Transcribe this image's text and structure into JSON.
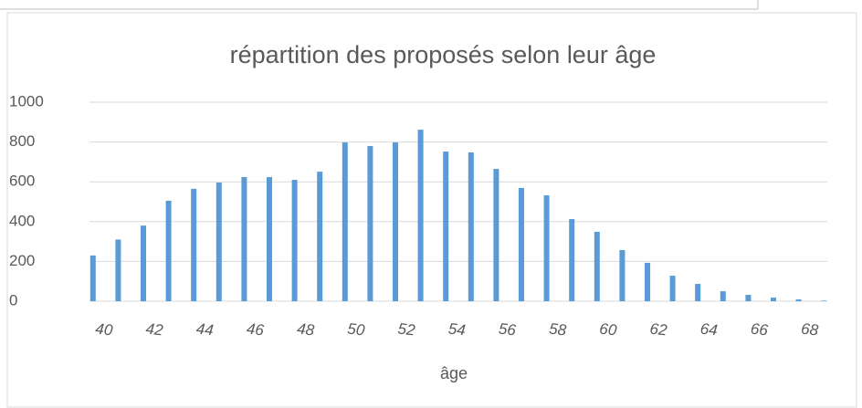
{
  "chart_data": {
    "type": "bar",
    "title": "répartition des proposés selon leur âge",
    "x_label": "âge",
    "categories": [
      "40",
      null,
      "42",
      null,
      "44",
      null,
      "46",
      null,
      "48",
      null,
      "50",
      null,
      "52",
      null,
      "54",
      null,
      "56",
      null,
      "58",
      null,
      "60",
      null,
      "62",
      null,
      "64",
      null,
      "66",
      null,
      "68",
      null
    ],
    "values": [
      230,
      310,
      380,
      505,
      565,
      596,
      624,
      624,
      610,
      651,
      798,
      780,
      798,
      862,
      752,
      748,
      665,
      569,
      532,
      413,
      349,
      257,
      193,
      128,
      87,
      50,
      32,
      18,
      9,
      3
    ],
    "color": "#5b9bd5",
    "ylim": [
      0,
      1000
    ],
    "yticks": [
      0,
      200,
      400,
      600,
      800,
      1000
    ],
    "grid": true
  }
}
